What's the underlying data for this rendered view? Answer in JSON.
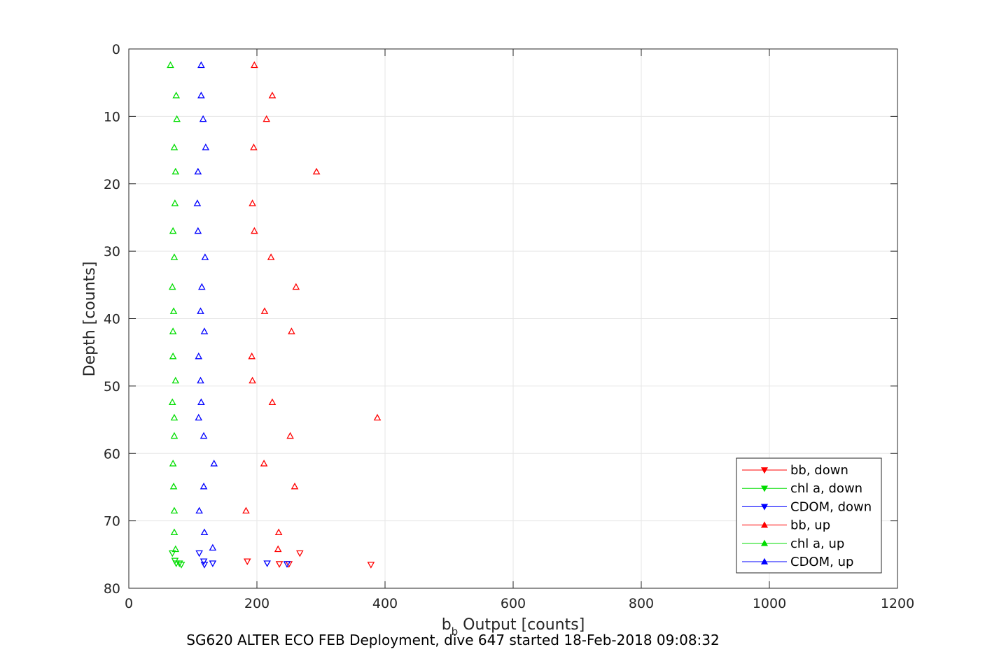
{
  "chart_data": {
    "type": "scatter",
    "xlabel_main": "b",
    "xlabel_sub": "b",
    "xlabel_rest": " Output [counts]",
    "ylabel": "Depth [counts]",
    "xlim": [
      0,
      1200
    ],
    "ylim": [
      0,
      80
    ],
    "y_reversed": true,
    "grid": true,
    "xticks": [
      0,
      200,
      400,
      600,
      800,
      1000,
      1200
    ],
    "yticks": [
      0,
      10,
      20,
      30,
      40,
      50,
      60,
      70,
      80
    ],
    "legend_position": "bottom-right",
    "series": [
      {
        "name": "bb, down",
        "color": "#ff0000",
        "marker": "triangle-down",
        "x": [
          185,
          235,
          250,
          267,
          378
        ],
        "y": [
          76.0,
          76.4,
          76.4,
          74.8,
          76.5
        ]
      },
      {
        "name": "chl a, down",
        "color": "#00dd00",
        "marker": "triangle-down",
        "x": [
          68,
          72,
          74,
          79,
          82
        ],
        "y": [
          74.8,
          75.9,
          76.3,
          76.3,
          76.5
        ]
      },
      {
        "name": "CDOM, down",
        "color": "#0000ff",
        "marker": "triangle-down",
        "x": [
          110,
          117,
          118,
          131,
          216,
          247
        ],
        "y": [
          74.8,
          76.0,
          76.5,
          76.3,
          76.3,
          76.4
        ]
      },
      {
        "name": "bb, up",
        "color": "#ff0000",
        "marker": "triangle-up",
        "x": [
          196,
          224,
          215,
          195,
          293,
          193,
          196,
          222,
          261,
          212,
          254,
          192,
          193,
          224,
          388,
          252,
          211,
          259,
          183,
          234,
          233
        ],
        "y": [
          2.4,
          6.9,
          10.4,
          14.6,
          18.2,
          22.9,
          27.0,
          30.9,
          35.3,
          38.9,
          41.9,
          45.6,
          49.2,
          52.4,
          54.7,
          57.4,
          61.5,
          64.9,
          68.5,
          71.7,
          74.2
        ]
      },
      {
        "name": "chl a, up",
        "color": "#00dd00",
        "marker": "triangle-up",
        "x": [
          65,
          74,
          75,
          71,
          73,
          72,
          69,
          71,
          68,
          70,
          69,
          69,
          73,
          68,
          71,
          71,
          69,
          70,
          71,
          71,
          73
        ],
        "y": [
          2.4,
          6.9,
          10.4,
          14.6,
          18.2,
          22.9,
          27.0,
          30.9,
          35.3,
          38.9,
          41.9,
          45.6,
          49.2,
          52.4,
          54.7,
          57.4,
          61.5,
          64.9,
          68.5,
          71.7,
          74.2
        ]
      },
      {
        "name": "CDOM, up",
        "color": "#0000ff",
        "marker": "triangle-up",
        "x": [
          113,
          113,
          116,
          120,
          108,
          107,
          108,
          119,
          114,
          112,
          118,
          109,
          112,
          113,
          109,
          117,
          133,
          117,
          110,
          118,
          131
        ],
        "y": [
          2.4,
          6.9,
          10.4,
          14.6,
          18.2,
          22.9,
          27.0,
          30.9,
          35.3,
          38.9,
          41.9,
          45.6,
          49.2,
          52.4,
          54.7,
          57.4,
          61.5,
          64.9,
          68.5,
          71.7,
          74.0
        ]
      }
    ]
  },
  "caption": "SG620 ALTER ECO FEB Deployment, dive 647 started 18-Feb-2018 09:08:32"
}
